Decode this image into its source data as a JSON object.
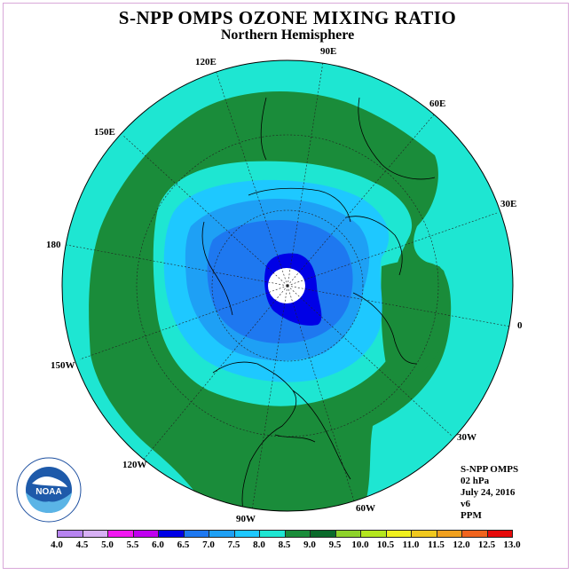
{
  "title": "S-NPP OMPS OZONE MIXING RATIO",
  "subtitle": "Northern Hemisphere",
  "longitude_labels": [
    "90E",
    "60E",
    "30E",
    "0",
    "30W",
    "60W",
    "90W",
    "120W",
    "150W",
    "180",
    "150E",
    "120E"
  ],
  "info": {
    "instrument": "S-NPP OMPS",
    "level": "02 hPa",
    "date": "July 24, 2016",
    "version": "v6",
    "units": "PPM"
  },
  "colorbar": {
    "labels": [
      "4.0",
      "4.5",
      "5.0",
      "5.5",
      "6.0",
      "6.5",
      "7.0",
      "7.5",
      "8.0",
      "8.5",
      "9.0",
      "9.5",
      "10.0",
      "10.5",
      "11.0",
      "11.5",
      "12.0",
      "12.5",
      "13.0"
    ],
    "colors": [
      "#b784f0",
      "#d7b0f5",
      "#f217f2",
      "#c000f0",
      "#0000e6",
      "#1e78f0",
      "#1ea0f5",
      "#1ec8ff",
      "#1ee6d2",
      "#1a8c3a",
      "#0a6a2a",
      "#8ed22a",
      "#b4e61e",
      "#f0f01e",
      "#f0c81e",
      "#f0a01e",
      "#f0641e",
      "#e60a0a",
      "#a05a3c"
    ]
  },
  "logo": {
    "text": "NOAA",
    "ring_text": "NATIONAL OCEANIC AND ATMOSPHERIC ADMINISTRATION · U.S. DEPARTMENT OF COMMERCE"
  },
  "map_colors": {
    "outer": "#1ee6d2",
    "band_8_5": "#1a8c3a",
    "band_7_5": "#1ee6d2",
    "band_7_0": "#1ec8ff",
    "band_6_5": "#1ea0f5",
    "band_6_0": "#1e78f0",
    "band_5_5": "#0000e6",
    "pole": "#ffffff"
  }
}
